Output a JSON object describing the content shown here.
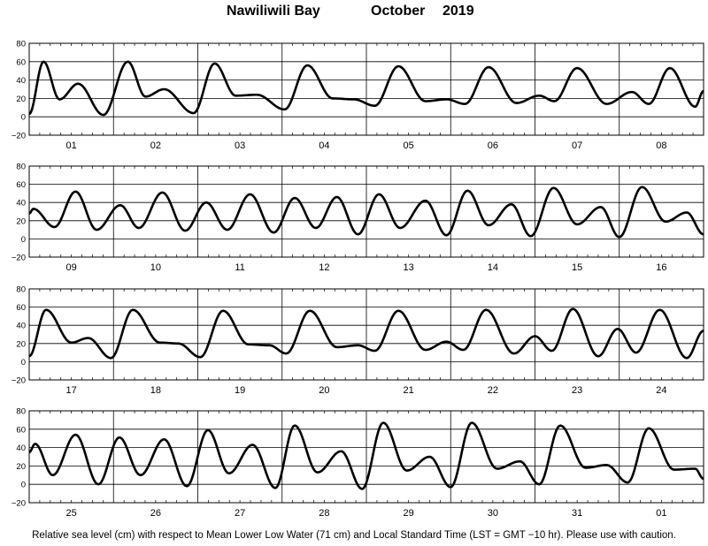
{
  "header": {
    "station": "Nawiliwili Bay",
    "month": "October",
    "year": "2019"
  },
  "footer": {
    "note": "Relative sea level (cm) with respect to Mean Lower Low Water (71 cm) and Local Standard Time (LST = GMT −10 hr). Please use with caution."
  },
  "colors": {
    "line": "#000000",
    "grid": "#000000",
    "background": "#ffffff"
  },
  "chart_data": [
    {
      "type": "line",
      "ylim": [
        -20,
        80
      ],
      "yticks": [
        "−20",
        "0",
        "20",
        "40",
        "60",
        "80"
      ],
      "ytick_values": [
        -20,
        0,
        20,
        40,
        60,
        80
      ],
      "xlim": [
        0,
        8
      ],
      "days": [
        "01",
        "02",
        "03",
        "04",
        "05",
        "06",
        "07",
        "08"
      ],
      "extrema": [
        [
          0,
          3
        ],
        [
          0.17,
          60
        ],
        [
          0.36,
          19
        ],
        [
          0.58,
          36
        ],
        [
          0.88,
          2
        ],
        [
          1.17,
          60
        ],
        [
          1.38,
          22
        ],
        [
          1.6,
          30
        ],
        [
          1.95,
          4
        ],
        [
          2.2,
          58
        ],
        [
          2.45,
          23
        ],
        [
          2.7,
          24
        ],
        [
          3.03,
          8
        ],
        [
          3.3,
          56
        ],
        [
          3.6,
          20
        ],
        [
          3.85,
          19
        ],
        [
          4.1,
          12
        ],
        [
          4.38,
          55
        ],
        [
          4.7,
          17
        ],
        [
          4.95,
          19
        ],
        [
          5.17,
          14
        ],
        [
          5.45,
          54
        ],
        [
          5.78,
          15
        ],
        [
          6.05,
          23
        ],
        [
          6.23,
          17
        ],
        [
          6.5,
          53
        ],
        [
          6.85,
          14
        ],
        [
          7.15,
          27
        ],
        [
          7.35,
          14
        ],
        [
          7.6,
          53
        ],
        [
          7.9,
          11
        ],
        [
          8,
          28
        ]
      ]
    },
    {
      "type": "line",
      "ylim": [
        -20,
        80
      ],
      "yticks": [
        "−20",
        "0",
        "20",
        "40",
        "60",
        "80"
      ],
      "ytick_values": [
        -20,
        0,
        20,
        40,
        60,
        80
      ],
      "xlim": [
        0,
        8
      ],
      "days": [
        "09",
        "10",
        "11",
        "12",
        "13",
        "14",
        "15",
        "16"
      ],
      "extrema": [
        [
          0,
          28
        ],
        [
          0.05,
          33
        ],
        [
          0.3,
          13
        ],
        [
          0.55,
          52
        ],
        [
          0.8,
          10
        ],
        [
          1.08,
          37
        ],
        [
          1.3,
          12
        ],
        [
          1.58,
          51
        ],
        [
          1.85,
          9
        ],
        [
          2.1,
          40
        ],
        [
          2.35,
          10
        ],
        [
          2.62,
          49
        ],
        [
          2.9,
          7
        ],
        [
          3.15,
          45
        ],
        [
          3.4,
          12
        ],
        [
          3.65,
          46
        ],
        [
          3.9,
          5
        ],
        [
          4.15,
          49
        ],
        [
          4.4,
          12
        ],
        [
          4.7,
          42
        ],
        [
          4.95,
          4
        ],
        [
          5.2,
          53
        ],
        [
          5.45,
          15
        ],
        [
          5.72,
          38
        ],
        [
          5.95,
          3
        ],
        [
          6.22,
          56
        ],
        [
          6.5,
          16
        ],
        [
          6.78,
          35
        ],
        [
          7.0,
          2
        ],
        [
          7.27,
          57
        ],
        [
          7.55,
          19
        ],
        [
          7.8,
          29
        ],
        [
          8,
          5
        ]
      ]
    },
    {
      "type": "line",
      "ylim": [
        -20,
        80
      ],
      "yticks": [
        "−20",
        "0",
        "20",
        "40",
        "60",
        "80"
      ],
      "ytick_values": [
        -20,
        0,
        20,
        40,
        60,
        80
      ],
      "xlim": [
        0,
        8
      ],
      "days": [
        "17",
        "18",
        "19",
        "20",
        "21",
        "22",
        "23",
        "24"
      ],
      "extrema": [
        [
          0,
          6
        ],
        [
          0.2,
          57
        ],
        [
          0.5,
          21
        ],
        [
          0.7,
          26
        ],
        [
          0.97,
          4
        ],
        [
          1.23,
          57
        ],
        [
          1.55,
          21
        ],
        [
          1.77,
          20
        ],
        [
          2.03,
          5
        ],
        [
          2.3,
          56
        ],
        [
          2.6,
          19
        ],
        [
          2.85,
          18
        ],
        [
          3.05,
          9
        ],
        [
          3.33,
          56
        ],
        [
          3.65,
          16
        ],
        [
          3.9,
          18
        ],
        [
          4.1,
          12
        ],
        [
          4.38,
          56
        ],
        [
          4.7,
          13
        ],
        [
          4.95,
          22
        ],
        [
          5.15,
          13
        ],
        [
          5.42,
          57
        ],
        [
          5.75,
          9
        ],
        [
          6.0,
          28
        ],
        [
          6.2,
          12
        ],
        [
          6.45,
          58
        ],
        [
          6.75,
          6
        ],
        [
          6.98,
          36
        ],
        [
          7.2,
          10
        ],
        [
          7.48,
          57
        ],
        [
          7.8,
          4
        ],
        [
          8,
          34
        ]
      ]
    },
    {
      "type": "line",
      "ylim": [
        -20,
        80
      ],
      "yticks": [
        "−20",
        "0",
        "20",
        "40",
        "60",
        "80"
      ],
      "ytick_values": [
        -20,
        0,
        20,
        40,
        60,
        80
      ],
      "xlim": [
        0,
        8
      ],
      "days": [
        "25",
        "26",
        "27",
        "28",
        "29",
        "30",
        "31",
        "01"
      ],
      "extrema": [
        [
          0,
          35
        ],
        [
          0.07,
          44
        ],
        [
          0.28,
          10
        ],
        [
          0.55,
          54
        ],
        [
          0.82,
          0
        ],
        [
          1.07,
          51
        ],
        [
          1.32,
          10
        ],
        [
          1.6,
          49
        ],
        [
          1.87,
          -2
        ],
        [
          2.12,
          59
        ],
        [
          2.37,
          12
        ],
        [
          2.65,
          43
        ],
        [
          2.92,
          -4
        ],
        [
          3.15,
          64
        ],
        [
          3.42,
          13
        ],
        [
          3.7,
          36
        ],
        [
          3.95,
          -5
        ],
        [
          4.2,
          67
        ],
        [
          4.48,
          15
        ],
        [
          4.75,
          30
        ],
        [
          5.0,
          -3
        ],
        [
          5.25,
          67
        ],
        [
          5.55,
          17
        ],
        [
          5.82,
          25
        ],
        [
          6.05,
          0
        ],
        [
          6.3,
          64
        ],
        [
          6.6,
          18
        ],
        [
          6.85,
          21
        ],
        [
          7.1,
          2
        ],
        [
          7.35,
          61
        ],
        [
          7.65,
          16
        ],
        [
          7.9,
          17
        ],
        [
          8,
          6
        ]
      ]
    }
  ]
}
